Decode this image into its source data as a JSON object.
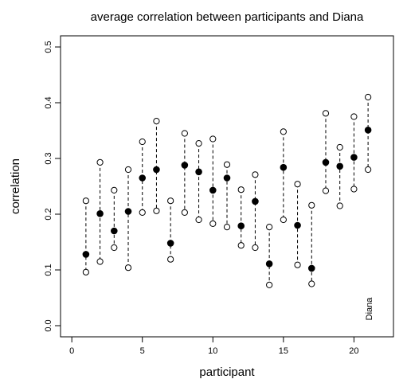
{
  "chart_data": {
    "type": "scatter",
    "title": "average correlation between participants and Diana",
    "xlabel": "participant",
    "ylabel": "correlation",
    "xlim": [
      -0.8,
      22.8
    ],
    "ylim": [
      -0.02,
      0.52
    ],
    "xticks": [
      0,
      5,
      10,
      15,
      20
    ],
    "xtick_labels": [
      "0",
      "5",
      "10",
      "15",
      "20"
    ],
    "yticks": [
      0.0,
      0.1,
      0.2,
      0.3,
      0.4,
      0.5
    ],
    "ytick_labels": [
      "0.0",
      "0.1",
      "0.2",
      "0.3",
      "0.4",
      "0.5"
    ],
    "grid": false,
    "annotation": "Diana",
    "series": [
      {
        "x": [
          1,
          2,
          3,
          4,
          5,
          6,
          7,
          8,
          9,
          10,
          11,
          12,
          13,
          14,
          15,
          16,
          17,
          18,
          19,
          20,
          21
        ],
        "lower": [
          0.096,
          0.115,
          0.14,
          0.104,
          0.203,
          0.206,
          0.119,
          0.203,
          0.19,
          0.183,
          0.177,
          0.144,
          0.14,
          0.073,
          0.19,
          0.109,
          0.075,
          0.242,
          0.215,
          0.245,
          0.28
        ],
        "mean": [
          0.128,
          0.201,
          0.17,
          0.205,
          0.265,
          0.28,
          0.148,
          0.288,
          0.276,
          0.243,
          0.265,
          0.179,
          0.223,
          0.111,
          0.284,
          0.18,
          0.103,
          0.293,
          0.286,
          0.302,
          0.351
        ],
        "upper": [
          0.224,
          0.293,
          0.243,
          0.28,
          0.33,
          0.367,
          0.224,
          0.345,
          0.327,
          0.335,
          0.289,
          0.244,
          0.271,
          0.177,
          0.348,
          0.254,
          0.216,
          0.381,
          0.32,
          0.375,
          0.41
        ]
      }
    ]
  }
}
